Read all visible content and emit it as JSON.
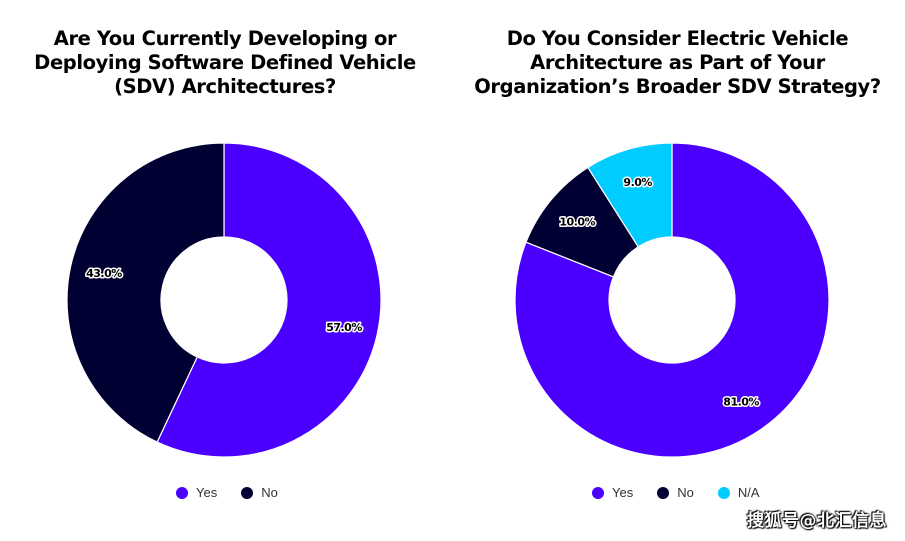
{
  "chart_data": [
    {
      "type": "pie",
      "variant": "donut",
      "title": "Are You Currently Developing or Deploying Software Defined Vehicle (SDV) Architectures?",
      "title_lines": [
        "Are You Currently Developing or",
        "Deploying Software Defined Vehicle",
        "(SDV) Architectures?"
      ],
      "categories": [
        "Yes",
        "No"
      ],
      "values": [
        57.0,
        43.0
      ],
      "labels": [
        "57.0%",
        "43.0%"
      ],
      "colors": [
        "#4b00ff",
        "#000033"
      ],
      "start_angle_deg": 0,
      "direction": "clockwise",
      "legend": {
        "placement": "bottom",
        "entries": [
          {
            "label": "Yes",
            "color": "#4b00ff"
          },
          {
            "label": "No",
            "color": "#000033"
          }
        ]
      }
    },
    {
      "type": "pie",
      "variant": "donut",
      "title": "Do You Consider Electric Vehicle Architecture as Part of Your Organization’s Broader SDV Strategy?",
      "title_lines": [
        "Do You Consider Electric Vehicle",
        "Architecture as Part of Your",
        "Organization’s Broader SDV Strategy?"
      ],
      "categories": [
        "Yes",
        "No",
        "N/A"
      ],
      "values": [
        81.0,
        10.0,
        9.0
      ],
      "labels": [
        "81.0%",
        "10.0%",
        "9.0%"
      ],
      "colors": [
        "#4b00ff",
        "#000033",
        "#00ccff"
      ],
      "start_angle_deg": 0,
      "direction": "clockwise",
      "legend": {
        "placement": "bottom",
        "entries": [
          {
            "label": "Yes",
            "color": "#4b00ff"
          },
          {
            "label": "No",
            "color": "#000033"
          },
          {
            "label": "N/A",
            "color": "#00ccff"
          }
        ]
      }
    }
  ],
  "watermark": "搜狐号@北汇信息"
}
